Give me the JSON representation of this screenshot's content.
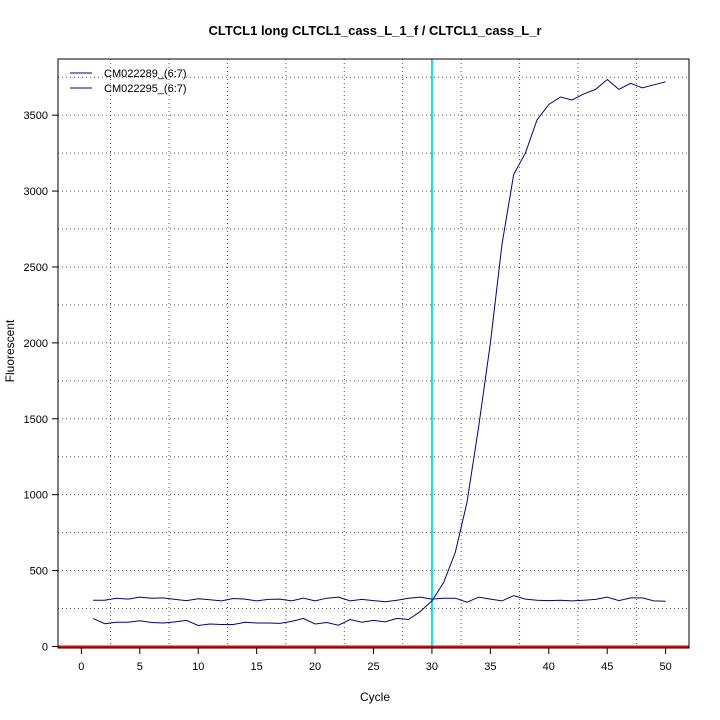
{
  "chart_data": {
    "type": "line",
    "title": "CLTCL1 long CLTCL1_cass_L_1_f / CLTCL1_cass_L_r",
    "xlabel": "Cycle",
    "ylabel": "Fluorescent",
    "xlim": [
      -2,
      52
    ],
    "ylim": [
      -10,
      3870
    ],
    "x_ticks": [
      0,
      5,
      10,
      15,
      20,
      25,
      30,
      35,
      40,
      45,
      50
    ],
    "y_ticks": [
      0,
      500,
      1000,
      1500,
      2000,
      2500,
      3000,
      3500
    ],
    "grid": true,
    "legend_position": "top-left",
    "threshold_x": 30,
    "threshold_color": "#00e5ee",
    "baseline_color": "#ee0000",
    "series_color": "#00008b",
    "x": [
      1,
      2,
      3,
      4,
      5,
      6,
      7,
      8,
      9,
      10,
      11,
      12,
      13,
      14,
      15,
      16,
      17,
      18,
      19,
      20,
      21,
      22,
      23,
      24,
      25,
      26,
      27,
      28,
      29,
      30,
      31,
      32,
      33,
      34,
      35,
      36,
      37,
      38,
      39,
      40,
      41,
      42,
      43,
      44,
      45,
      46,
      47,
      48,
      49,
      50
    ],
    "series": [
      {
        "name": "CM022289_(6:7)",
        "values": [
          305,
          305,
          318,
          312,
          325,
          318,
          320,
          310,
          302,
          315,
          308,
          300,
          316,
          312,
          300,
          310,
          312,
          300,
          318,
          300,
          318,
          325,
          300,
          310,
          302,
          295,
          305,
          318,
          325,
          312,
          318,
          318,
          292,
          325,
          312,
          300,
          335,
          312,
          305,
          302,
          305,
          300,
          305,
          310,
          325,
          302,
          320,
          320,
          300,
          298
        ]
      },
      {
        "name": "CM022295_(6:7)",
        "values": [
          185,
          150,
          160,
          160,
          170,
          158,
          155,
          162,
          172,
          138,
          148,
          145,
          145,
          160,
          155,
          155,
          152,
          165,
          185,
          148,
          158,
          140,
          178,
          160,
          172,
          162,
          185,
          178,
          230,
          300,
          420,
          620,
          950,
          1450,
          2000,
          2650,
          3110,
          3250,
          3470,
          3570,
          3620,
          3600,
          3640,
          3670,
          3735,
          3670,
          3710,
          3680,
          3700,
          3720
        ]
      }
    ]
  }
}
